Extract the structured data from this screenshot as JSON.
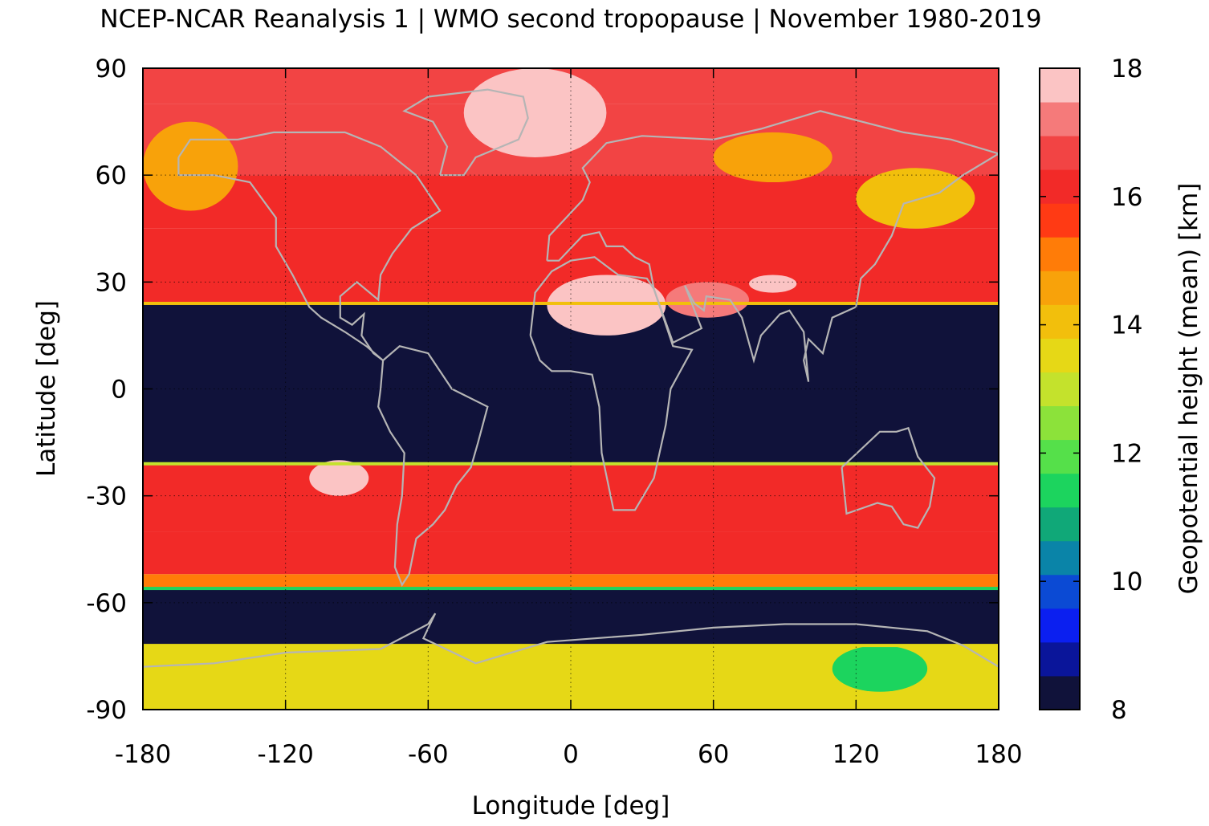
{
  "chart_data": {
    "type": "heatmap",
    "title": "NCEP-NCAR Reanalysis 1 | WMO second tropopause | November 1980-2019",
    "xlabel": "Longitude [deg]",
    "ylabel": "Latitude [deg]",
    "colorbar_label": "Geopotential height (mean) [km]",
    "xlim": [
      -180,
      180
    ],
    "ylim": [
      -90,
      90
    ],
    "x_ticks": [
      "-180",
      "-120",
      "-60",
      "0",
      "60",
      "120",
      "180"
    ],
    "y_ticks": [
      "90",
      "60",
      "30",
      "0",
      "-30",
      "-60",
      "-90"
    ],
    "colorbar_range": [
      8,
      18
    ],
    "colorbar_ticks": [
      "18",
      "16",
      "14",
      "12",
      "10",
      "8"
    ],
    "colorbar_colors": [
      "#10123a",
      "#0a159a",
      "#0b1ff0",
      "#0b4ad4",
      "#0a84a8",
      "#10a878",
      "#1cd45e",
      "#55e04a",
      "#8ce23a",
      "#c4e22c",
      "#e6d816",
      "#f2bf0c",
      "#f8a20a",
      "#ff7c08",
      "#ff3a14",
      "#f22a28",
      "#f24444",
      "#f57a7a",
      "#fbc4c4"
    ],
    "grid": true,
    "coastlines": true,
    "zonal_bands": [
      {
        "lat": [
          80,
          90
        ],
        "value": 16.8
      },
      {
        "lat": [
          60,
          80
        ],
        "value": 16.6
      },
      {
        "lat": [
          45,
          60
        ],
        "value": 16.3
      },
      {
        "lat": [
          24,
          45
        ],
        "value": 16.1
      },
      {
        "lat": [
          -21,
          24
        ],
        "value": 8.0
      },
      {
        "lat": [
          -40,
          -21
        ],
        "value": 16.2
      },
      {
        "lat": [
          -52,
          -40
        ],
        "value": 15.9
      },
      {
        "lat": [
          -56,
          -52
        ],
        "value": 15.0
      },
      {
        "lat": [
          -72,
          -56
        ],
        "value": 8.0
      },
      {
        "lat": [
          -90,
          -72
        ],
        "value": 13.6
      }
    ],
    "features": [
      {
        "name": "greenland-high",
        "lon": [
          -45,
          15
        ],
        "lat": [
          65,
          90
        ],
        "value": 17.8
      },
      {
        "name": "pacific-low",
        "lon": [
          -180,
          -140
        ],
        "lat": [
          50,
          75
        ],
        "value": 14.5
      },
      {
        "name": "siberia-low",
        "lon": [
          60,
          110
        ],
        "lat": [
          58,
          72
        ],
        "value": 14.8
      },
      {
        "name": "east-asia-low",
        "lon": [
          120,
          170
        ],
        "lat": [
          45,
          62
        ],
        "value": 14.3
      },
      {
        "name": "sahara-high",
        "lon": [
          -10,
          40
        ],
        "lat": [
          15,
          32
        ],
        "value": 17.8
      },
      {
        "name": "arabia-high",
        "lon": [
          40,
          75
        ],
        "lat": [
          20,
          30
        ],
        "value": 17.2
      },
      {
        "name": "tibet-high",
        "lon": [
          75,
          95
        ],
        "lat": [
          27,
          32
        ],
        "value": 17.9
      },
      {
        "name": "south-pacific-high",
        "lon": [
          -110,
          -85
        ],
        "lat": [
          -30,
          -20
        ],
        "value": 17.5
      },
      {
        "name": "antarctic-plateau-low",
        "lon": [
          110,
          150
        ],
        "lat": [
          -85,
          -72
        ],
        "value": 11.5
      }
    ]
  }
}
